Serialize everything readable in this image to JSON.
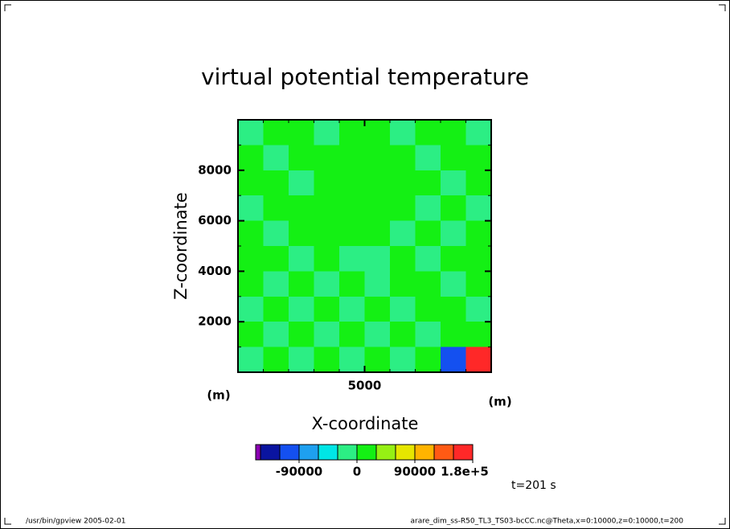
{
  "chart_data": {
    "type": "contour",
    "title": "virtual potential temperature",
    "x_label": "X-coordinate",
    "y_label": "Z-coordinate",
    "x_unit": "(m)",
    "y_unit": "(m)",
    "xlim": [
      0,
      10000
    ],
    "ylim": [
      0,
      10000
    ],
    "xticks": [
      5000
    ],
    "yticks": [
      2000,
      4000,
      6000,
      8000
    ],
    "z": [
      [
        -15000,
        15000,
        15000,
        -15000,
        15000,
        15000,
        -15000,
        15000,
        15000,
        -15000
      ],
      [
        15000,
        -15000,
        15000,
        15000,
        15000,
        15000,
        15000,
        -15000,
        15000,
        15000
      ],
      [
        15000,
        15000,
        -15000,
        15000,
        15000,
        15000,
        15000,
        15000,
        -15000,
        15000
      ],
      [
        -15000,
        15000,
        15000,
        15000,
        15000,
        15000,
        15000,
        -15000,
        15000,
        -15000
      ],
      [
        15000,
        -15000,
        15000,
        15000,
        15000,
        15000,
        -15000,
        15000,
        -15000,
        15000
      ],
      [
        15000,
        15000,
        -15000,
        15000,
        -15000,
        -15000,
        15000,
        -15000,
        15000,
        15000
      ],
      [
        15000,
        -15000,
        15000,
        -15000,
        15000,
        -15000,
        15000,
        15000,
        -15000,
        15000
      ],
      [
        -15000,
        15000,
        -15000,
        15000,
        -15000,
        15000,
        -15000,
        15000,
        15000,
        -15000
      ],
      [
        15000,
        -15000,
        15000,
        -15000,
        15000,
        -15000,
        15000,
        -15000,
        15000,
        15000
      ],
      [
        -15000,
        15000,
        -15000,
        15000,
        -15000,
        15000,
        -15000,
        15000,
        -100000,
        170000
      ]
    ],
    "levels": [
      -150000,
      -120000,
      -90000,
      -60000,
      -30000,
      0,
      30000,
      60000,
      90000,
      120000,
      150000,
      180000
    ],
    "colors": [
      "#8c00b4",
      "#0a14a0",
      "#1450f0",
      "#1ea0f0",
      "#00e6e6",
      "#2cee84",
      "#14f014",
      "#96f014",
      "#e6e600",
      "#ffb400",
      "#ff5a14",
      "#ff2828"
    ],
    "colorbar_ticks": [
      -90000,
      0,
      90000,
      {
        "value": 180000,
        "label": "1.8e+5"
      }
    ],
    "time_label": "t=201 s",
    "footer_left": "/usr/bin/gpview  2005-02-01",
    "footer_right": "arare_dim_ss-R50_TL3_TS03-bcCC.nc@Theta,x=0:10000,z=0:10000,t=200"
  }
}
